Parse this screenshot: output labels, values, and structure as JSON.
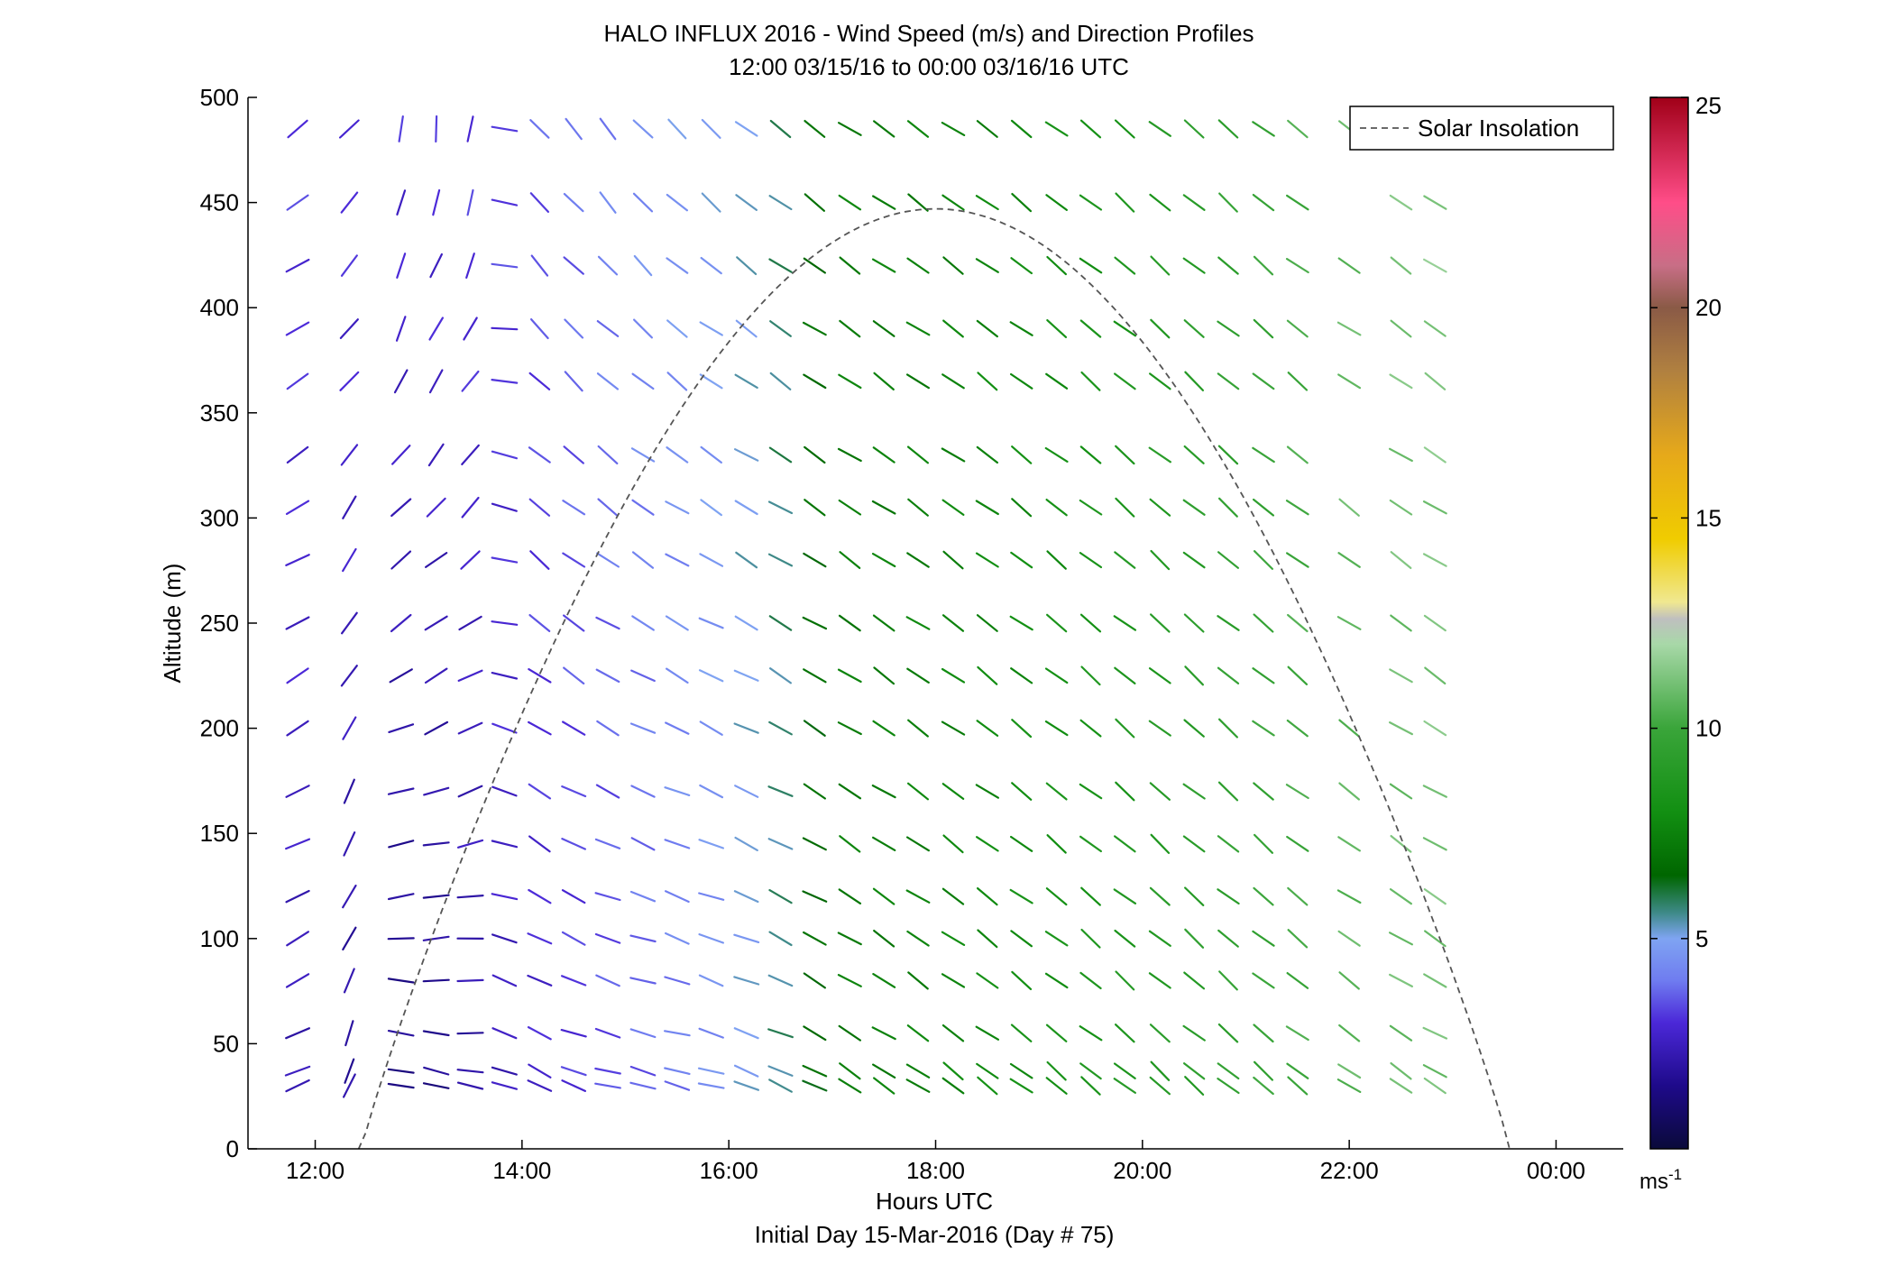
{
  "chart_data": {
    "type": "vector-field",
    "title": "HALO INFLUX 2016 - Wind Speed (m/s) and Direction Profiles",
    "subtitle": "12:00 03/15/16 to 00:00 03/16/16  UTC",
    "xlabel": "Hours UTC",
    "footer": "Initial Day 15-Mar-2016 (Day # 75)",
    "ylabel": "Altitude (m)",
    "xlim": [
      11.35,
      24.65
    ],
    "ylim": [
      0,
      500
    ],
    "x_ticks": [
      12,
      14,
      16,
      18,
      20,
      22,
      24
    ],
    "x_tick_labels": [
      "12:00",
      "14:00",
      "16:00",
      "18:00",
      "20:00",
      "22:00",
      "00:00"
    ],
    "y_ticks": [
      0,
      50,
      100,
      150,
      200,
      250,
      300,
      350,
      400,
      450,
      500
    ],
    "y_tick_labels": [
      "0",
      "50",
      "100",
      "150",
      "200",
      "250",
      "300",
      "350",
      "400",
      "450",
      "500"
    ],
    "legend": {
      "position": "top-right",
      "entries": [
        "Solar Insolation"
      ]
    },
    "solar_insolation": {
      "start_hour": 12.42,
      "peak_hour": 18.0,
      "end_hour": 23.55,
      "peak_altitude": 447
    },
    "colorbar": {
      "range": [
        0,
        25
      ],
      "ticks": [
        5,
        10,
        15,
        20,
        25
      ],
      "tick_labels": [
        "5",
        "10",
        "15",
        "20",
        "25"
      ],
      "unit_base": "ms",
      "unit_exp": "-1",
      "stops": [
        {
          "v": 0,
          "c": "#0a0a3a"
        },
        {
          "v": 1.5,
          "c": "#1e0a8a"
        },
        {
          "v": 3,
          "c": "#4b28d8"
        },
        {
          "v": 4,
          "c": "#6f7cf0"
        },
        {
          "v": 5,
          "c": "#7fa4f2"
        },
        {
          "v": 5.6,
          "c": "#3f8a8a"
        },
        {
          "v": 6.5,
          "c": "#006600"
        },
        {
          "v": 8,
          "c": "#128f12"
        },
        {
          "v": 10,
          "c": "#3aa53a"
        },
        {
          "v": 12,
          "c": "#a8d8a8"
        },
        {
          "v": 12.6,
          "c": "#bfbfbf"
        },
        {
          "v": 13,
          "c": "#f0e890"
        },
        {
          "v": 14.5,
          "c": "#f0cc00"
        },
        {
          "v": 16.5,
          "c": "#e6a91a"
        },
        {
          "v": 18.5,
          "c": "#b08040"
        },
        {
          "v": 20,
          "c": "#8a5a46"
        },
        {
          "v": 21,
          "c": "#c86e86"
        },
        {
          "v": 22.5,
          "c": "#ff4d88"
        },
        {
          "v": 25,
          "c": "#a00018"
        }
      ]
    },
    "profile_hours": [
      11.83,
      12.33,
      12.83,
      13.17,
      13.5,
      13.83,
      14.17,
      14.5,
      14.83,
      15.17,
      15.5,
      15.83,
      16.17,
      16.5,
      16.83,
      17.17,
      17.5,
      17.83,
      18.17,
      18.5,
      18.83,
      19.17,
      19.5,
      19.83,
      20.17,
      20.5,
      20.83,
      21.17,
      21.5,
      22.0,
      22.5,
      22.83
    ],
    "altitudes": [
      30,
      37,
      55,
      80,
      100,
      120,
      145,
      170,
      200,
      225,
      250,
      280,
      305,
      330,
      365,
      390,
      420,
      450,
      485
    ],
    "speed_keyframes": {
      "hours": [
        11.83,
        13.0,
        14.0,
        15.0,
        16.0,
        16.5,
        17.0,
        18.0,
        19.0,
        20.0,
        21.0,
        22.0,
        22.83
      ],
      "low_speed": [
        2.2,
        1.2,
        2.6,
        3.4,
        4.6,
        5.6,
        7.2,
        7.6,
        8.2,
        8.8,
        9.6,
        10.6,
        11.0
      ],
      "high_speed": [
        3.2,
        3.0,
        3.4,
        4.4,
        5.0,
        5.8,
        7.4,
        7.4,
        7.8,
        8.6,
        9.6,
        10.8,
        11.4
      ]
    },
    "direction_keyframes": {
      "note": "wind-from direction in degrees",
      "hours": [
        11.83,
        12.33,
        12.83,
        13.5,
        14.0,
        15.0,
        16.0,
        17.0,
        18.0,
        20.0,
        21.0,
        22.0,
        22.83
      ],
      "low_dir": [
        245,
        200,
        290,
        285,
        295,
        280,
        285,
        300,
        305,
        310,
        310,
        305,
        300
      ],
      "high_dir": [
        235,
        225,
        185,
        190,
        320,
        320,
        310,
        305,
        305,
        310,
        310,
        305,
        305
      ]
    }
  }
}
